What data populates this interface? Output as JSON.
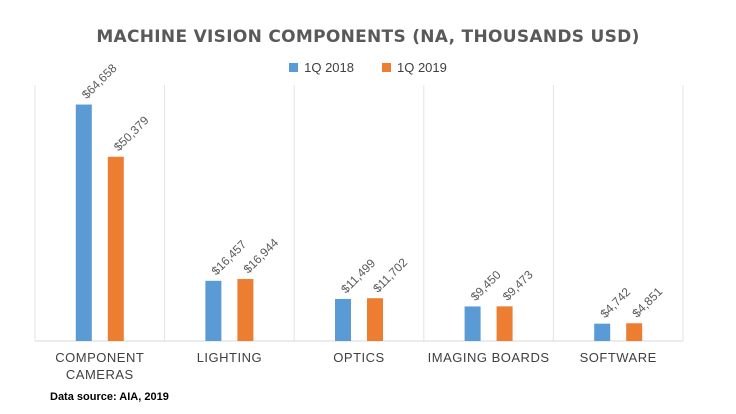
{
  "chart_data": {
    "type": "bar",
    "title": "MACHINE VISION COMPONENTS (NA, THOUSANDS USD)",
    "categories": [
      "COMPONENT CAMERAS",
      "LIGHTING",
      "OPTICS",
      "IMAGING BOARDS",
      "SOFTWARE"
    ],
    "category_lines": [
      [
        "COMPONENT",
        "CAMERAS"
      ],
      [
        "LIGHTING"
      ],
      [
        "OPTICS"
      ],
      [
        "IMAGING BOARDS"
      ],
      [
        "SOFTWARE"
      ]
    ],
    "series": [
      {
        "name": "1Q 2018",
        "color": "#5B9BD5",
        "values": [
          64658,
          16457,
          11499,
          9450,
          4742
        ],
        "labels": [
          "$64,658",
          "$16,457",
          "$11,499",
          "$9,450",
          "$4,742"
        ]
      },
      {
        "name": "1Q 2019",
        "color": "#ED7D31",
        "values": [
          50379,
          16944,
          11702,
          9473,
          4851
        ],
        "labels": [
          "$50,379",
          "$16,944",
          "$11,702",
          "$9,473",
          "$4,851"
        ]
      }
    ],
    "ylim": [
      0,
      70000
    ],
    "grid": false,
    "legend_position": "top-center",
    "xlabel": "",
    "ylabel": ""
  },
  "footer": {
    "source": "Data source: AIA, 2019"
  }
}
